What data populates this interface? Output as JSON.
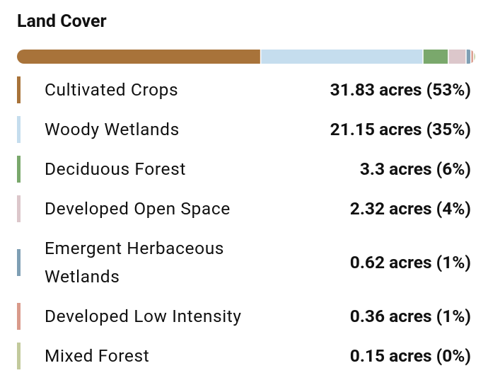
{
  "chart_data": {
    "type": "stacked-bar",
    "title": "Land Cover",
    "categories": [
      "Cultivated Crops",
      "Woody Wetlands",
      "Deciduous Forest",
      "Developed Open Space",
      "Emergent Herbaceous Wetlands",
      "Developed Low Intensity",
      "Mixed Forest"
    ],
    "values": [
      31.83,
      21.15,
      3.3,
      2.32,
      0.62,
      0.36,
      0.15
    ],
    "value_labels": [
      "31.83 acres (53%)",
      "21.15 acres (35%)",
      "3.3 acres (6%)",
      "2.32 acres (4%)",
      "0.62 acres (1%)",
      "0.36 acres (1%)",
      "0.15 acres (0%)"
    ],
    "colors": [
      "#a8733a",
      "#c5ddee",
      "#7aa86c",
      "#dcc7cb",
      "#7f9fb4",
      "#d99a8b",
      "#c2ca9c"
    ]
  }
}
